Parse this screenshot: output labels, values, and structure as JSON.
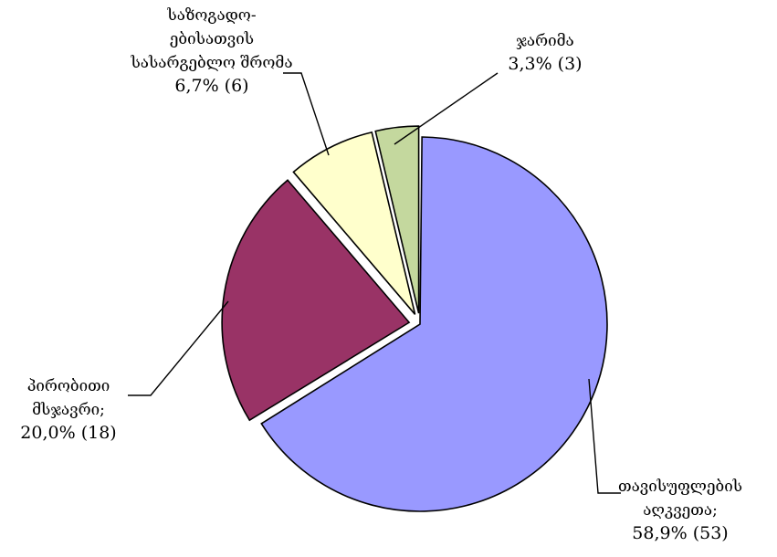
{
  "chart_data": {
    "type": "pie",
    "slices": [
      {
        "label_lines": [
          "თავისუფლების",
          "აღკვეთა;"
        ],
        "value_text": "58,9% (53)",
        "percent": 58.9,
        "count": 53,
        "color": "#9999FF"
      },
      {
        "label_lines": [
          "პირობითი",
          "მსჯავრი;"
        ],
        "value_text": "20,0% (18)",
        "percent": 20.0,
        "count": 18,
        "color": "#993366"
      },
      {
        "label_lines": [
          "საზოგადო-",
          "ებისათვის",
          "სასარგებლო შრომა"
        ],
        "value_text": "6,7% (6)",
        "percent": 6.7,
        "count": 6,
        "color": "#FFFFCC"
      },
      {
        "label_lines": [
          "ჯარიმა"
        ],
        "value_text": "3,3% (3)",
        "percent": 3.3,
        "count": 3,
        "color": "#C4D89E"
      }
    ],
    "legend": "none",
    "exploded": true
  }
}
